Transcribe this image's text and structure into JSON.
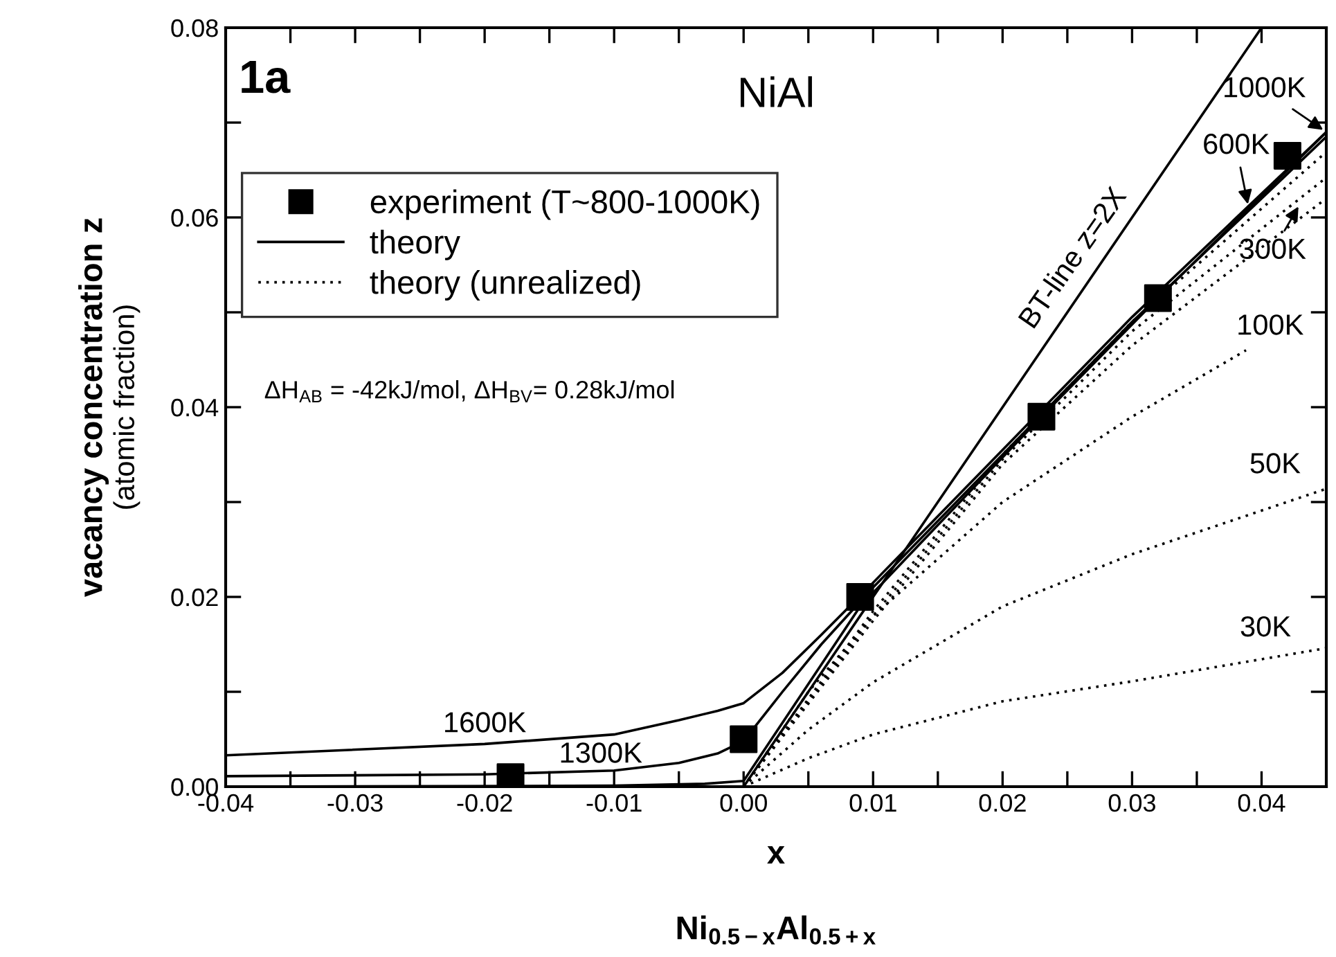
{
  "chart_data": {
    "type": "line",
    "title": "NiAl",
    "xlabel": "x",
    "ylabel": "vacancy concentration z",
    "xlim": [
      -0.04,
      0.045
    ],
    "ylim": [
      0.0,
      0.08
    ],
    "xticks": [
      {
        "value": -0.04,
        "label": "-0.04"
      },
      {
        "value": -0.035,
        "label": null
      },
      {
        "value": -0.03,
        "label": "-0.03"
      },
      {
        "value": -0.025,
        "label": null
      },
      {
        "value": -0.02,
        "label": "-0.02"
      },
      {
        "value": -0.015,
        "label": null
      },
      {
        "value": -0.01,
        "label": "-0.01"
      },
      {
        "value": -0.005,
        "label": null
      },
      {
        "value": 0.0,
        "label": "0.00"
      },
      {
        "value": 0.005,
        "label": null
      },
      {
        "value": 0.01,
        "label": "0.01"
      },
      {
        "value": 0.015,
        "label": null
      },
      {
        "value": 0.02,
        "label": "0.02"
      },
      {
        "value": 0.025,
        "label": null
      },
      {
        "value": 0.03,
        "label": "0.03"
      },
      {
        "value": 0.035,
        "label": null
      },
      {
        "value": 0.04,
        "label": "0.04"
      }
    ],
    "yticks": [
      {
        "value": 0.0,
        "label": "0.00"
      },
      {
        "value": 0.01,
        "label": null
      },
      {
        "value": 0.02,
        "label": "0.02"
      },
      {
        "value": 0.03,
        "label": null
      },
      {
        "value": 0.04,
        "label": "0.04"
      },
      {
        "value": 0.05,
        "label": null
      },
      {
        "value": 0.06,
        "label": "0.06"
      },
      {
        "value": 0.07,
        "label": null
      },
      {
        "value": 0.08,
        "label": "0.08"
      }
    ],
    "grid": false,
    "legend": "top left",
    "series": [
      {
        "name": "experiment (T~800-1000K)",
        "type": "scatter",
        "marker": "square",
        "color": "#000000",
        "x": [
          -0.018,
          0.0,
          0.009,
          0.023,
          0.032,
          0.042
        ],
        "values": [
          0.001,
          0.005,
          0.02,
          0.039,
          0.0515,
          0.0665
        ]
      },
      {
        "name": "theory",
        "line_style": "solid",
        "color": "#000000",
        "x": [
          -0.04,
          -0.02,
          -0.01,
          -0.005,
          -0.002,
          0.0,
          0.003,
          0.006,
          0.01,
          0.02,
          0.03,
          0.045
        ],
        "values": [
          0.0011,
          0.0013,
          0.0017,
          0.0025,
          0.0035,
          0.0048,
          0.01,
          0.015,
          0.021,
          0.035,
          0.049,
          0.0685
        ]
      },
      {
        "line_style": "solid",
        "color": "#000000",
        "x": [
          -0.04,
          -0.02,
          -0.01,
          -0.005,
          -0.002,
          0.0,
          0.003,
          0.006,
          0.01,
          0.02,
          0.03,
          0.045
        ],
        "values": [
          0.0033,
          0.0045,
          0.0055,
          0.007,
          0.008,
          0.0088,
          0.012,
          0.016,
          0.0215,
          0.0355,
          0.0495,
          0.069
        ]
      },
      {
        "line_style": "solid",
        "color": "#000000",
        "x": [
          -0.04,
          -0.01,
          -0.003,
          0.0,
          0.009,
          0.023,
          0.032,
          0.045
        ],
        "values": [
          0.0,
          0.0001,
          0.0003,
          0.0006,
          0.019,
          0.039,
          0.0515,
          0.069
        ]
      },
      {
        "line_style": "solid",
        "color": "#000000",
        "x": [
          0.0,
          0.04
        ],
        "values": [
          0.0,
          0.08
        ]
      },
      {
        "name": "theory (unrealized)",
        "line_style": "dotted",
        "color": "#000000",
        "x": [
          0.0,
          0.01,
          0.02,
          0.03,
          0.045
        ],
        "values": [
          0.0,
          0.0185,
          0.035,
          0.049,
          0.0669
        ]
      },
      {
        "line_style": "dotted",
        "color": "#000000",
        "x": [
          0.0,
          0.01,
          0.02,
          0.03,
          0.045
        ],
        "values": [
          0.0,
          0.018,
          0.0345,
          0.048,
          0.0642
        ]
      },
      {
        "line_style": "dotted",
        "color": "#000000",
        "x": [
          0.0,
          0.01,
          0.02,
          0.03,
          0.045
        ],
        "values": [
          0.0,
          0.0175,
          0.034,
          0.0465,
          0.062
        ]
      },
      {
        "line_style": "dotted",
        "color": "#000000",
        "x": [
          0.0,
          0.005,
          0.01,
          0.02,
          0.03,
          0.0388
        ],
        "values": [
          0.0,
          0.01,
          0.018,
          0.03,
          0.039,
          0.046
        ]
      },
      {
        "line_style": "dotted",
        "color": "#000000",
        "x": [
          0.0,
          0.005,
          0.01,
          0.02,
          0.03,
          0.045
        ],
        "values": [
          0.0,
          0.006,
          0.011,
          0.019,
          0.0245,
          0.0314
        ]
      },
      {
        "line_style": "dotted",
        "color": "#000000",
        "x": [
          0.0,
          0.005,
          0.01,
          0.02,
          0.03,
          0.045
        ],
        "values": [
          0.0,
          0.003,
          0.0055,
          0.009,
          0.0111,
          0.0146
        ]
      }
    ],
    "annotations": [
      "1a",
      "(atomic fraction)",
      "ΔH$_{AB}$ = -42kJ/mol, ΔH$_{BV}$= 0.28kJ/mol",
      "Ni$_{0.5−x}$Al$_{0.5+x}$",
      {
        "text": "BT-line z=2X",
        "x": 0.027,
        "y": 0.054
      },
      {
        "text": "1000K",
        "x": 0.045,
        "y": 0.069
      },
      {
        "text": "600K",
        "x": 0.039,
        "y": 0.061
      },
      {
        "text": "300K",
        "x": 0.043,
        "y": 0.0615
      },
      {
        "text": "100K",
        "x": 0.0388,
        "y": 0.046
      },
      {
        "text": "50K",
        "x": 0.045,
        "y": 0.0314
      },
      {
        "text": "30K",
        "x": 0.045,
        "y": 0.0146
      },
      {
        "text": "1600K",
        "x": -0.02,
        "y": 0.0045
      },
      {
        "text": "1300K",
        "x": -0.01,
        "y": 0.0017
      }
    ]
  }
}
